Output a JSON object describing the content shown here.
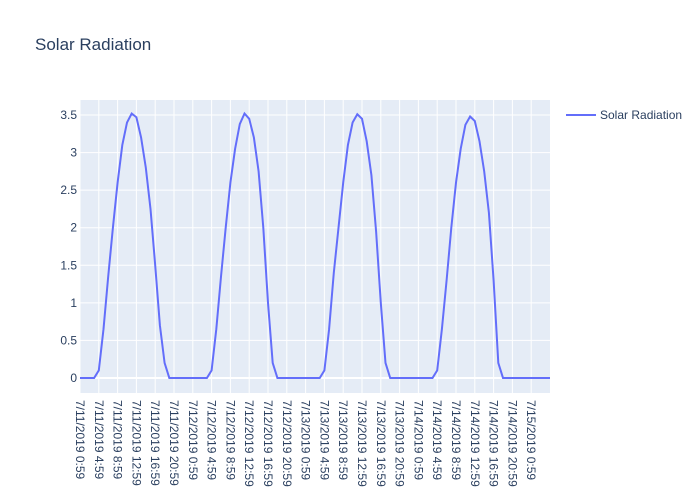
{
  "chart_data": {
    "type": "line",
    "title": "Solar Radiation",
    "xlabel": "",
    "ylabel": "",
    "ylim": [
      -0.2,
      3.7
    ],
    "y_ticks": [
      0,
      0.5,
      1,
      1.5,
      2,
      2.5,
      3,
      3.5
    ],
    "y_tick_labels": [
      "0",
      "0.5",
      "1",
      "1.5",
      "2",
      "2.5",
      "3",
      "3.5"
    ],
    "x_tick_labels": [
      "7/11/2019 0:59",
      "7/11/2019 4:59",
      "7/11/2019 8:59",
      "7/11/2019 12:59",
      "7/11/2019 16:59",
      "7/11/2019 20:59",
      "7/12/2019 0:59",
      "7/12/2019 4:59",
      "7/12/2019 8:59",
      "7/12/2019 12:59",
      "7/12/2019 16:59",
      "7/12/2019 20:59",
      "7/13/2019 0:59",
      "7/13/2019 4:59",
      "7/13/2019 8:59",
      "7/13/2019 12:59",
      "7/13/2019 16:59",
      "7/13/2019 20:59",
      "7/14/2019 0:59",
      "7/14/2019 4:59",
      "7/14/2019 8:59",
      "7/14/2019 12:59",
      "7/14/2019 16:59",
      "7/14/2019 20:59",
      "7/15/2019 0:59"
    ],
    "grid": true,
    "legend_position": "top-right",
    "line_color": "#636efa",
    "plot_background": "#e5ecf6",
    "series": [
      {
        "name": "Solar Radiation",
        "values": [
          0,
          0,
          0,
          0,
          0.1,
          0.65,
          1.35,
          2.0,
          2.6,
          3.1,
          3.4,
          3.52,
          3.47,
          3.2,
          2.8,
          2.25,
          1.5,
          0.7,
          0.2,
          0,
          0,
          0,
          0,
          0,
          0,
          0,
          0,
          0,
          0.1,
          0.65,
          1.35,
          2.0,
          2.6,
          3.05,
          3.38,
          3.52,
          3.45,
          3.2,
          2.75,
          2.0,
          1.0,
          0.2,
          0,
          0,
          0,
          0,
          0,
          0,
          0,
          0,
          0,
          0,
          0.1,
          0.65,
          1.4,
          2.0,
          2.6,
          3.1,
          3.4,
          3.51,
          3.45,
          3.15,
          2.7,
          1.95,
          1.0,
          0.2,
          0,
          0,
          0,
          0,
          0,
          0,
          0,
          0,
          0,
          0,
          0.1,
          0.65,
          1.3,
          2.0,
          2.6,
          3.05,
          3.37,
          3.48,
          3.42,
          3.15,
          2.75,
          2.2,
          1.3,
          0.2,
          0,
          0,
          0,
          0,
          0,
          0,
          0,
          0,
          0,
          0,
          0
        ]
      }
    ]
  }
}
